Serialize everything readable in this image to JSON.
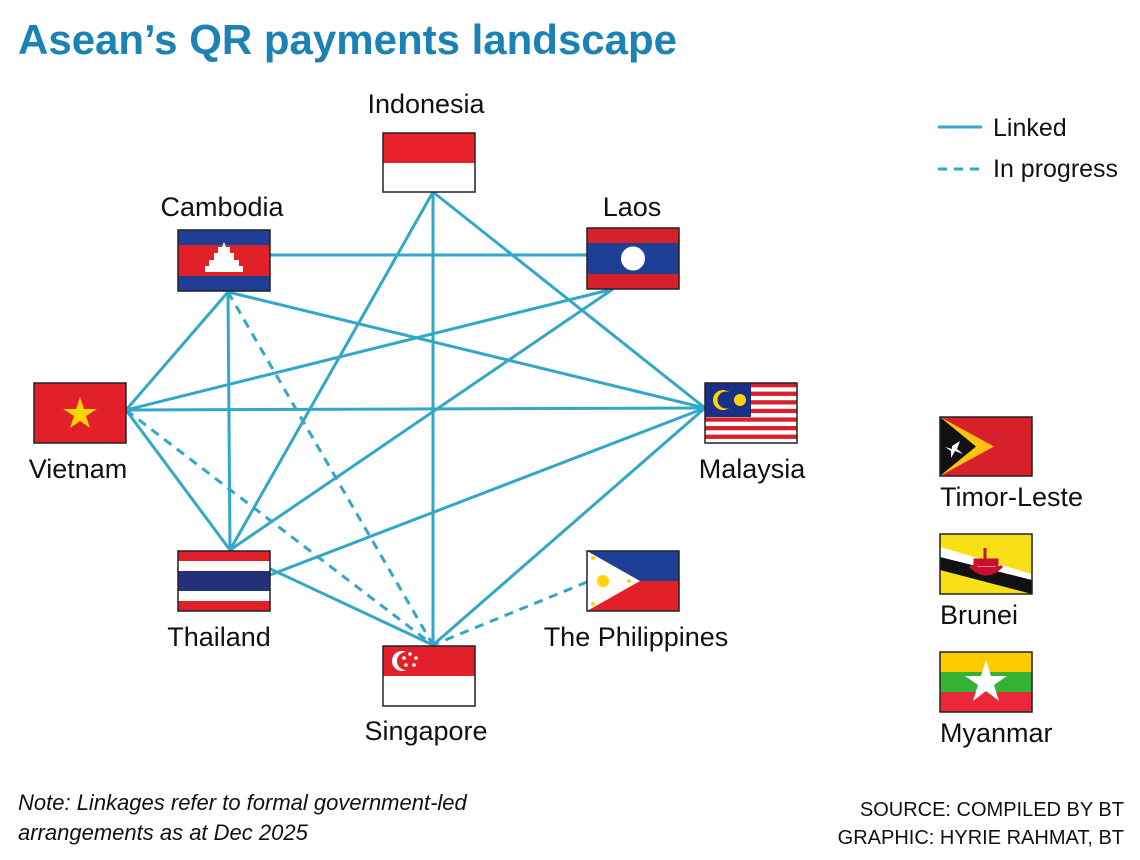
{
  "header": {
    "title": "Asean’s QR payments landscape"
  },
  "legend": [
    "Linked",
    "In progress"
  ],
  "nodes": [
    "Indonesia",
    "Cambodia",
    "Laos",
    "Vietnam",
    "Malaysia",
    "Thailand",
    "Singapore",
    "The Philippines"
  ],
  "unlinked": [
    "Timor-Leste",
    "Brunei",
    "Myanmar"
  ],
  "note": [
    "Note: Linkages refer to formal government-led",
    "arrangements as at Dec 2025"
  ],
  "source": [
    "SOURCE: COMPILED BY BT",
    "GRAPHIC: HYRIE RAHMAT, BT"
  ]
}
